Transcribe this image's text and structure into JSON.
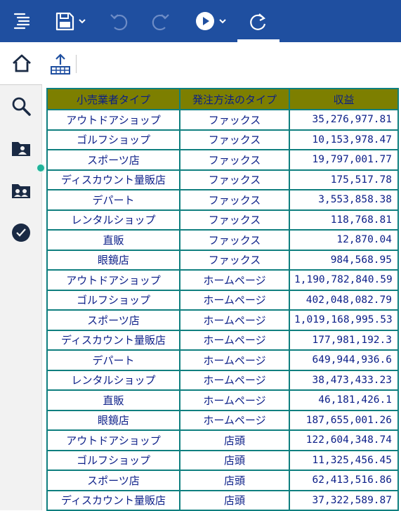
{
  "toolbar": {
    "items": [
      {
        "name": "menu-icon"
      },
      {
        "name": "save-icon"
      },
      {
        "name": "undo-icon"
      },
      {
        "name": "redo-icon"
      },
      {
        "name": "run-icon"
      },
      {
        "name": "refresh-icon"
      }
    ],
    "accent_color": "#1f4fa0"
  },
  "sidebar": {
    "items": [
      {
        "name": "home-icon",
        "active": true
      },
      {
        "name": "search-icon"
      },
      {
        "name": "user-folder-icon"
      },
      {
        "name": "id-card-icon"
      },
      {
        "name": "check-clock-icon"
      }
    ]
  },
  "subtoolbar": {
    "export_icon": "export-upload-icon"
  },
  "table": {
    "header_color": "#7d7f00",
    "border_color": "#0f7f7f",
    "text_color": "#0b1f88",
    "columns": [
      "小売業者タイプ",
      "発注方法のタイプ",
      "収益"
    ],
    "rows": [
      [
        "アウトドアショップ",
        "ファックス",
        "35,276,977.81"
      ],
      [
        "ゴルフショップ",
        "ファックス",
        "10,153,978.47"
      ],
      [
        "スポーツ店",
        "ファックス",
        "19,797,001.77"
      ],
      [
        "ディスカウント量販店",
        "ファックス",
        "175,517.78"
      ],
      [
        "デパート",
        "ファックス",
        "3,553,858.38"
      ],
      [
        "レンタルショップ",
        "ファックス",
        "118,768.81"
      ],
      [
        "直販",
        "ファックス",
        "12,870.04"
      ],
      [
        "眼鏡店",
        "ファックス",
        "984,568.95"
      ],
      [
        "アウトドアショップ",
        "ホームページ",
        "1,190,782,840.59"
      ],
      [
        "ゴルフショップ",
        "ホームページ",
        "402,048,082.79"
      ],
      [
        "スポーツ店",
        "ホームページ",
        "1,019,168,995.53"
      ],
      [
        "ディスカウント量販店",
        "ホームページ",
        "177,981,192.3"
      ],
      [
        "デパート",
        "ホームページ",
        "649,944,936.6"
      ],
      [
        "レンタルショップ",
        "ホームページ",
        "38,473,433.23"
      ],
      [
        "直販",
        "ホームページ",
        "46,181,426.1"
      ],
      [
        "眼鏡店",
        "ホームページ",
        "187,655,001.26"
      ],
      [
        "アウトドアショップ",
        "店頭",
        "122,604,348.74"
      ],
      [
        "ゴルフショップ",
        "店頭",
        "11,325,456.45"
      ],
      [
        "スポーツ店",
        "店頭",
        "62,413,516.86"
      ],
      [
        "ディスカウント量販店",
        "店頭",
        "37,322,589.87"
      ]
    ]
  }
}
